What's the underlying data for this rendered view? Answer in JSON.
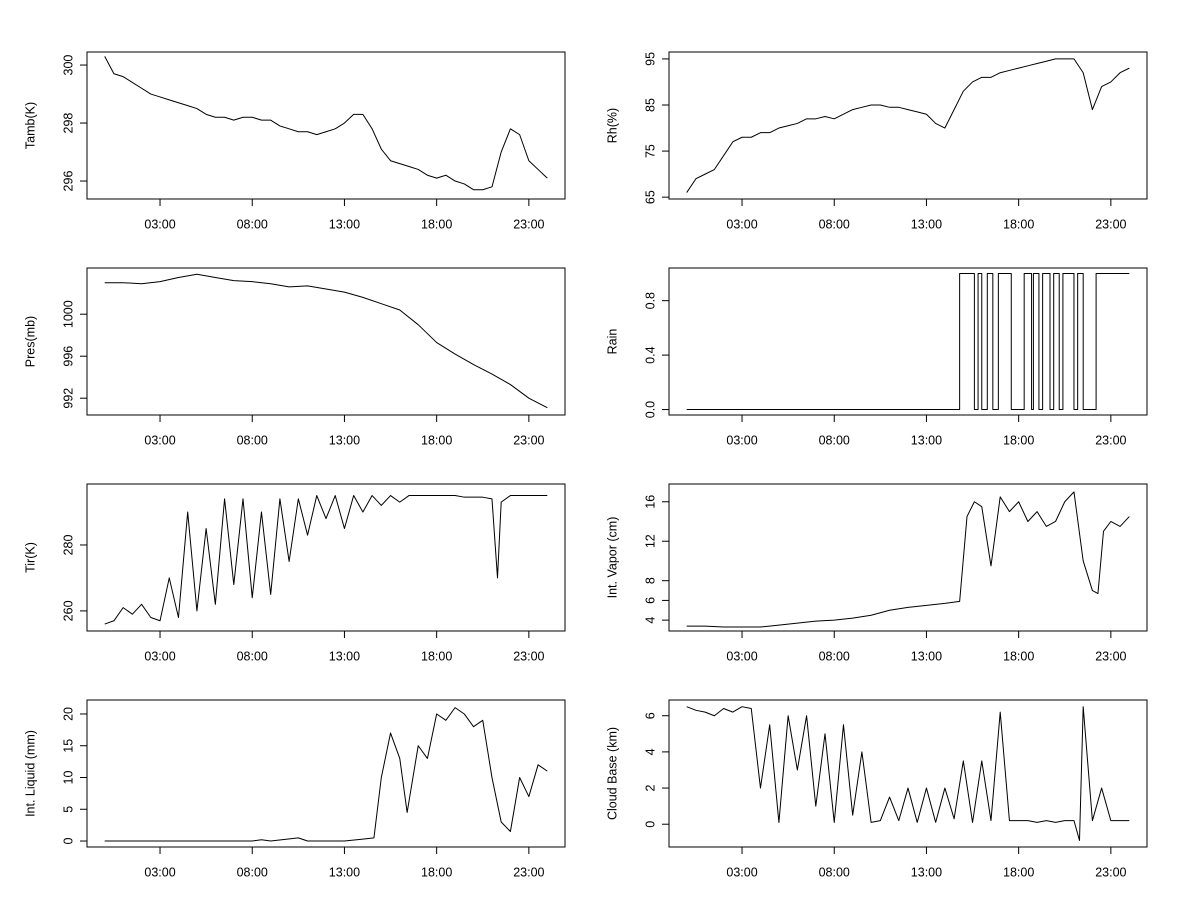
{
  "chart_data": [
    {
      "type": "line",
      "ylabel": "Tamb(K)",
      "color": "#000000",
      "x": [
        0,
        0.5,
        1,
        1.5,
        2,
        2.5,
        3,
        3.5,
        4,
        4.5,
        5,
        5.5,
        6,
        6.5,
        7,
        7.5,
        8,
        8.5,
        9,
        9.5,
        10,
        10.5,
        11,
        11.5,
        12,
        12.5,
        13,
        13.5,
        14,
        14.5,
        15,
        15.5,
        16,
        16.5,
        17,
        17.5,
        18,
        18.5,
        19,
        19.5,
        20,
        20.5,
        21,
        21.5,
        22,
        22.5,
        23,
        23.5,
        24
      ],
      "values": [
        300.3,
        299.7,
        299.6,
        299.4,
        299.2,
        299.0,
        298.9,
        298.8,
        298.7,
        298.6,
        298.5,
        298.3,
        298.2,
        298.2,
        298.1,
        298.2,
        298.2,
        298.1,
        298.1,
        297.9,
        297.8,
        297.7,
        297.7,
        297.6,
        297.7,
        297.8,
        298.0,
        298.3,
        298.3,
        297.8,
        297.1,
        296.7,
        296.6,
        296.5,
        296.4,
        296.2,
        296.1,
        296.2,
        296.0,
        295.9,
        295.7,
        295.7,
        295.8,
        297.0,
        297.8,
        297.6,
        296.7,
        296.4,
        296.1
      ],
      "xlim": [
        -0.96,
        24.96
      ],
      "ylim": [
        295.38,
        300.45
      ],
      "xticks": [
        {
          "value": 3,
          "label": "03:00"
        },
        {
          "value": 8,
          "label": "08:00"
        },
        {
          "value": 13,
          "label": "13:00"
        },
        {
          "value": 18,
          "label": "18:00"
        },
        {
          "value": 23,
          "label": "23:00"
        }
      ],
      "yticks": [
        296,
        298,
        300
      ]
    },
    {
      "type": "line",
      "ylabel": "Rh(%)",
      "color": "#000000",
      "x": [
        0,
        0.5,
        1,
        1.5,
        2,
        2.5,
        3,
        3.5,
        4,
        4.5,
        5,
        5.5,
        6,
        6.5,
        7,
        7.5,
        8,
        8.5,
        9,
        9.5,
        10,
        10.5,
        11,
        11.5,
        12,
        12.5,
        13,
        13.5,
        14,
        14.5,
        15,
        15.5,
        16,
        16.5,
        17,
        17.5,
        18,
        18.5,
        19,
        19.5,
        20,
        20.5,
        21,
        21.5,
        22,
        22.5,
        23,
        23.5,
        24
      ],
      "values": [
        66,
        69,
        70,
        71,
        74,
        77,
        78,
        78,
        79,
        79,
        80,
        80.5,
        81,
        82,
        82,
        82.5,
        82,
        83,
        84,
        84.5,
        85,
        85,
        84.5,
        84.5,
        84,
        83.5,
        83,
        81,
        80,
        84,
        88,
        90,
        91,
        91,
        92,
        92.5,
        93,
        93.5,
        94,
        94.5,
        95,
        95,
        95,
        92,
        84,
        89,
        90,
        92,
        93
      ],
      "xlim": [
        -0.96,
        24.96
      ],
      "ylim": [
        64.6,
        96.5
      ],
      "xticks": [
        {
          "value": 3,
          "label": "03:00"
        },
        {
          "value": 8,
          "label": "08:00"
        },
        {
          "value": 13,
          "label": "13:00"
        },
        {
          "value": 18,
          "label": "18:00"
        },
        {
          "value": 23,
          "label": "23:00"
        }
      ],
      "yticks": [
        65,
        75,
        85,
        95
      ]
    },
    {
      "type": "line",
      "ylabel": "Pres(mb)",
      "color": "#000000",
      "x": [
        0,
        1,
        2,
        3,
        4,
        5,
        6,
        7,
        8,
        9,
        10,
        11,
        12,
        13,
        14,
        15,
        16,
        17,
        18,
        19,
        20,
        21,
        22,
        23,
        24
      ],
      "values": [
        1003.0,
        1003.0,
        1002.9,
        1003.1,
        1003.5,
        1003.8,
        1003.5,
        1003.2,
        1003.1,
        1002.9,
        1002.6,
        1002.7,
        1002.4,
        1002.1,
        1001.6,
        1001.0,
        1000.4,
        999.0,
        997.3,
        996.2,
        995.2,
        994.3,
        993.3,
        992.0,
        991.1
      ],
      "xlim": [
        -0.96,
        24.96
      ],
      "ylim": [
        990.4,
        1004.4
      ],
      "xticks": [
        {
          "value": 3,
          "label": "03:00"
        },
        {
          "value": 8,
          "label": "08:00"
        },
        {
          "value": 13,
          "label": "13:00"
        },
        {
          "value": 18,
          "label": "18:00"
        },
        {
          "value": 23,
          "label": "23:00"
        }
      ],
      "yticks": [
        992,
        996,
        1000
      ]
    },
    {
      "type": "line",
      "ylabel": "Rain",
      "color": "#000000",
      "x": [
        0,
        14.8,
        14.8,
        15.6,
        15.6,
        15.8,
        15.8,
        16,
        16,
        16.3,
        16.3,
        16.6,
        16.6,
        16.9,
        16.9,
        17.6,
        17.6,
        18.3,
        18.3,
        18.7,
        18.7,
        18.8,
        18.8,
        19.1,
        19.1,
        19.3,
        19.3,
        19.7,
        19.7,
        19.9,
        19.9,
        20.2,
        20.2,
        20.4,
        20.4,
        21,
        21,
        21.2,
        21.2,
        21.5,
        21.5,
        22.2,
        22.2,
        24
      ],
      "values": [
        0,
        0,
        1,
        1,
        0,
        0,
        1,
        1,
        0,
        0,
        1,
        1,
        0,
        0,
        1,
        1,
        0,
        0,
        1,
        1,
        0,
        0,
        1,
        1,
        0,
        0,
        1,
        1,
        0,
        0,
        1,
        1,
        0,
        0,
        1,
        1,
        0,
        0,
        1,
        1,
        0,
        0,
        1,
        1
      ],
      "xlim": [
        -0.96,
        24.96
      ],
      "ylim": [
        -0.04,
        1.04
      ],
      "xticks": [
        {
          "value": 3,
          "label": "03:00"
        },
        {
          "value": 8,
          "label": "08:00"
        },
        {
          "value": 13,
          "label": "13:00"
        },
        {
          "value": 18,
          "label": "18:00"
        },
        {
          "value": 23,
          "label": "23:00"
        }
      ],
      "yticks": [
        {
          "value": 0,
          "label": "0.0"
        },
        0.4,
        0.8
      ]
    },
    {
      "type": "line",
      "ylabel": "Tir(K)",
      "color": "#000000",
      "x": [
        0,
        0.5,
        1,
        1.5,
        2,
        2.5,
        3,
        3.5,
        4,
        4.5,
        5,
        5.5,
        6,
        6.5,
        7,
        7.5,
        8,
        8.5,
        9,
        9.5,
        10,
        10.5,
        11,
        11.5,
        12,
        12.5,
        13,
        13.5,
        14,
        14.5,
        15,
        15.5,
        16,
        16.5,
        17,
        17.5,
        18,
        18.5,
        19,
        19.5,
        20,
        20.5,
        21,
        21.3,
        21.5,
        22,
        22.5,
        23,
        23.5,
        24
      ],
      "values": [
        256,
        257,
        261,
        259,
        262,
        258,
        257,
        270,
        258,
        290,
        260,
        285,
        262,
        294,
        268,
        294,
        264,
        290,
        265,
        294,
        275,
        294,
        283,
        295,
        288,
        295,
        285,
        295,
        290,
        295,
        292,
        295,
        293,
        295,
        295,
        295,
        295,
        295,
        295,
        294.5,
        294.5,
        294.5,
        294,
        270,
        293,
        295,
        295,
        295,
        295,
        295
      ],
      "xlim": [
        -0.96,
        24.96
      ],
      "ylim": [
        253.9,
        298.5
      ],
      "xticks": [
        {
          "value": 3,
          "label": "03:00"
        },
        {
          "value": 8,
          "label": "08:00"
        },
        {
          "value": 13,
          "label": "13:00"
        },
        {
          "value": 18,
          "label": "18:00"
        },
        {
          "value": 23,
          "label": "23:00"
        }
      ],
      "yticks": [
        260,
        280
      ]
    },
    {
      "type": "line",
      "ylabel": "Int. Vapor (cm)",
      "color": "#000000",
      "x": [
        0,
        1,
        2,
        3,
        4,
        5,
        6,
        7,
        8,
        9,
        10,
        11,
        12,
        13,
        14,
        14.8,
        15.2,
        15.6,
        16,
        16.5,
        17,
        17.5,
        18,
        18.5,
        19,
        19.5,
        20,
        20.5,
        21,
        21.5,
        22,
        22.3,
        22.6,
        23,
        23.5,
        24
      ],
      "values": [
        3.4,
        3.4,
        3.3,
        3.3,
        3.3,
        3.5,
        3.7,
        3.9,
        4.0,
        4.2,
        4.5,
        5.0,
        5.3,
        5.5,
        5.7,
        5.9,
        14.5,
        16,
        15.5,
        9.5,
        16.5,
        15,
        16,
        14,
        15,
        13.5,
        14,
        16,
        17,
        10,
        7,
        6.7,
        13,
        14,
        13.5,
        14.5
      ],
      "xlim": [
        -0.96,
        24.96
      ],
      "ylim": [
        2.9,
        17.8
      ],
      "xticks": [
        {
          "value": 3,
          "label": "03:00"
        },
        {
          "value": 8,
          "label": "08:00"
        },
        {
          "value": 13,
          "label": "13:00"
        },
        {
          "value": 18,
          "label": "18:00"
        },
        {
          "value": 23,
          "label": "23:00"
        }
      ],
      "yticks": [
        4,
        6,
        8,
        12,
        16
      ]
    },
    {
      "type": "line",
      "ylabel": "Int. Liquid (mm)",
      "color": "#000000",
      "x": [
        0,
        2,
        4,
        6,
        8,
        8.5,
        9,
        10.5,
        11,
        13,
        14,
        14.6,
        15,
        15.5,
        16,
        16.4,
        17,
        17.5,
        18,
        18.5,
        19,
        19.5,
        20,
        20.5,
        21,
        21.5,
        22,
        22.5,
        23,
        23.5,
        24
      ],
      "values": [
        0,
        0,
        0,
        0,
        0,
        0.2,
        0,
        0.5,
        0,
        0,
        0.3,
        0.5,
        10,
        17,
        13,
        4.5,
        15,
        13,
        20,
        19,
        21,
        20,
        18,
        19,
        10,
        3,
        1.5,
        10,
        7,
        12,
        11
      ],
      "xlim": [
        -0.96,
        24.96
      ],
      "ylim": [
        -0.94,
        22.2
      ],
      "xticks": [
        {
          "value": 3,
          "label": "03:00"
        },
        {
          "value": 8,
          "label": "08:00"
        },
        {
          "value": 13,
          "label": "13:00"
        },
        {
          "value": 18,
          "label": "18:00"
        },
        {
          "value": 23,
          "label": "23:00"
        }
      ],
      "yticks": [
        0,
        5,
        10,
        15,
        20
      ]
    },
    {
      "type": "line",
      "ylabel": "Cloud Base (km)",
      "color": "#000000",
      "x": [
        0,
        0.5,
        1,
        1.5,
        2,
        2.5,
        3,
        3.5,
        4,
        4.5,
        5,
        5.5,
        6,
        6.5,
        7,
        7.5,
        8,
        8.5,
        9,
        9.5,
        10,
        10.5,
        11,
        11.5,
        12,
        12.5,
        13,
        13.5,
        14,
        14.5,
        15,
        15.5,
        16,
        16.5,
        17,
        17.5,
        18,
        18.5,
        19,
        19.5,
        20,
        20.5,
        21,
        21.3,
        21.5,
        22,
        22.5,
        23,
        23.5,
        24
      ],
      "values": [
        6.5,
        6.3,
        6.2,
        6.0,
        6.4,
        6.2,
        6.5,
        6.4,
        2,
        5.5,
        0.1,
        6,
        3,
        6,
        1,
        5,
        0.1,
        5.5,
        0.5,
        4,
        0.1,
        0.2,
        1.5,
        0.2,
        2,
        0.1,
        2,
        0.1,
        2,
        0.3,
        3.5,
        0.1,
        3.5,
        0.2,
        6.2,
        0.2,
        0.2,
        0.2,
        0.1,
        0.2,
        0.1,
        0.2,
        0.2,
        -0.9,
        6.5,
        0.2,
        2,
        0.2,
        0.2,
        0.2
      ],
      "xlim": [
        -0.96,
        24.96
      ],
      "ylim": [
        -1.26,
        6.87
      ],
      "xticks": [
        {
          "value": 3,
          "label": "03:00"
        },
        {
          "value": 8,
          "label": "08:00"
        },
        {
          "value": 13,
          "label": "13:00"
        },
        {
          "value": 18,
          "label": "18:00"
        },
        {
          "value": 23,
          "label": "23:00"
        }
      ],
      "yticks": [
        0,
        2,
        4,
        6
      ]
    }
  ]
}
